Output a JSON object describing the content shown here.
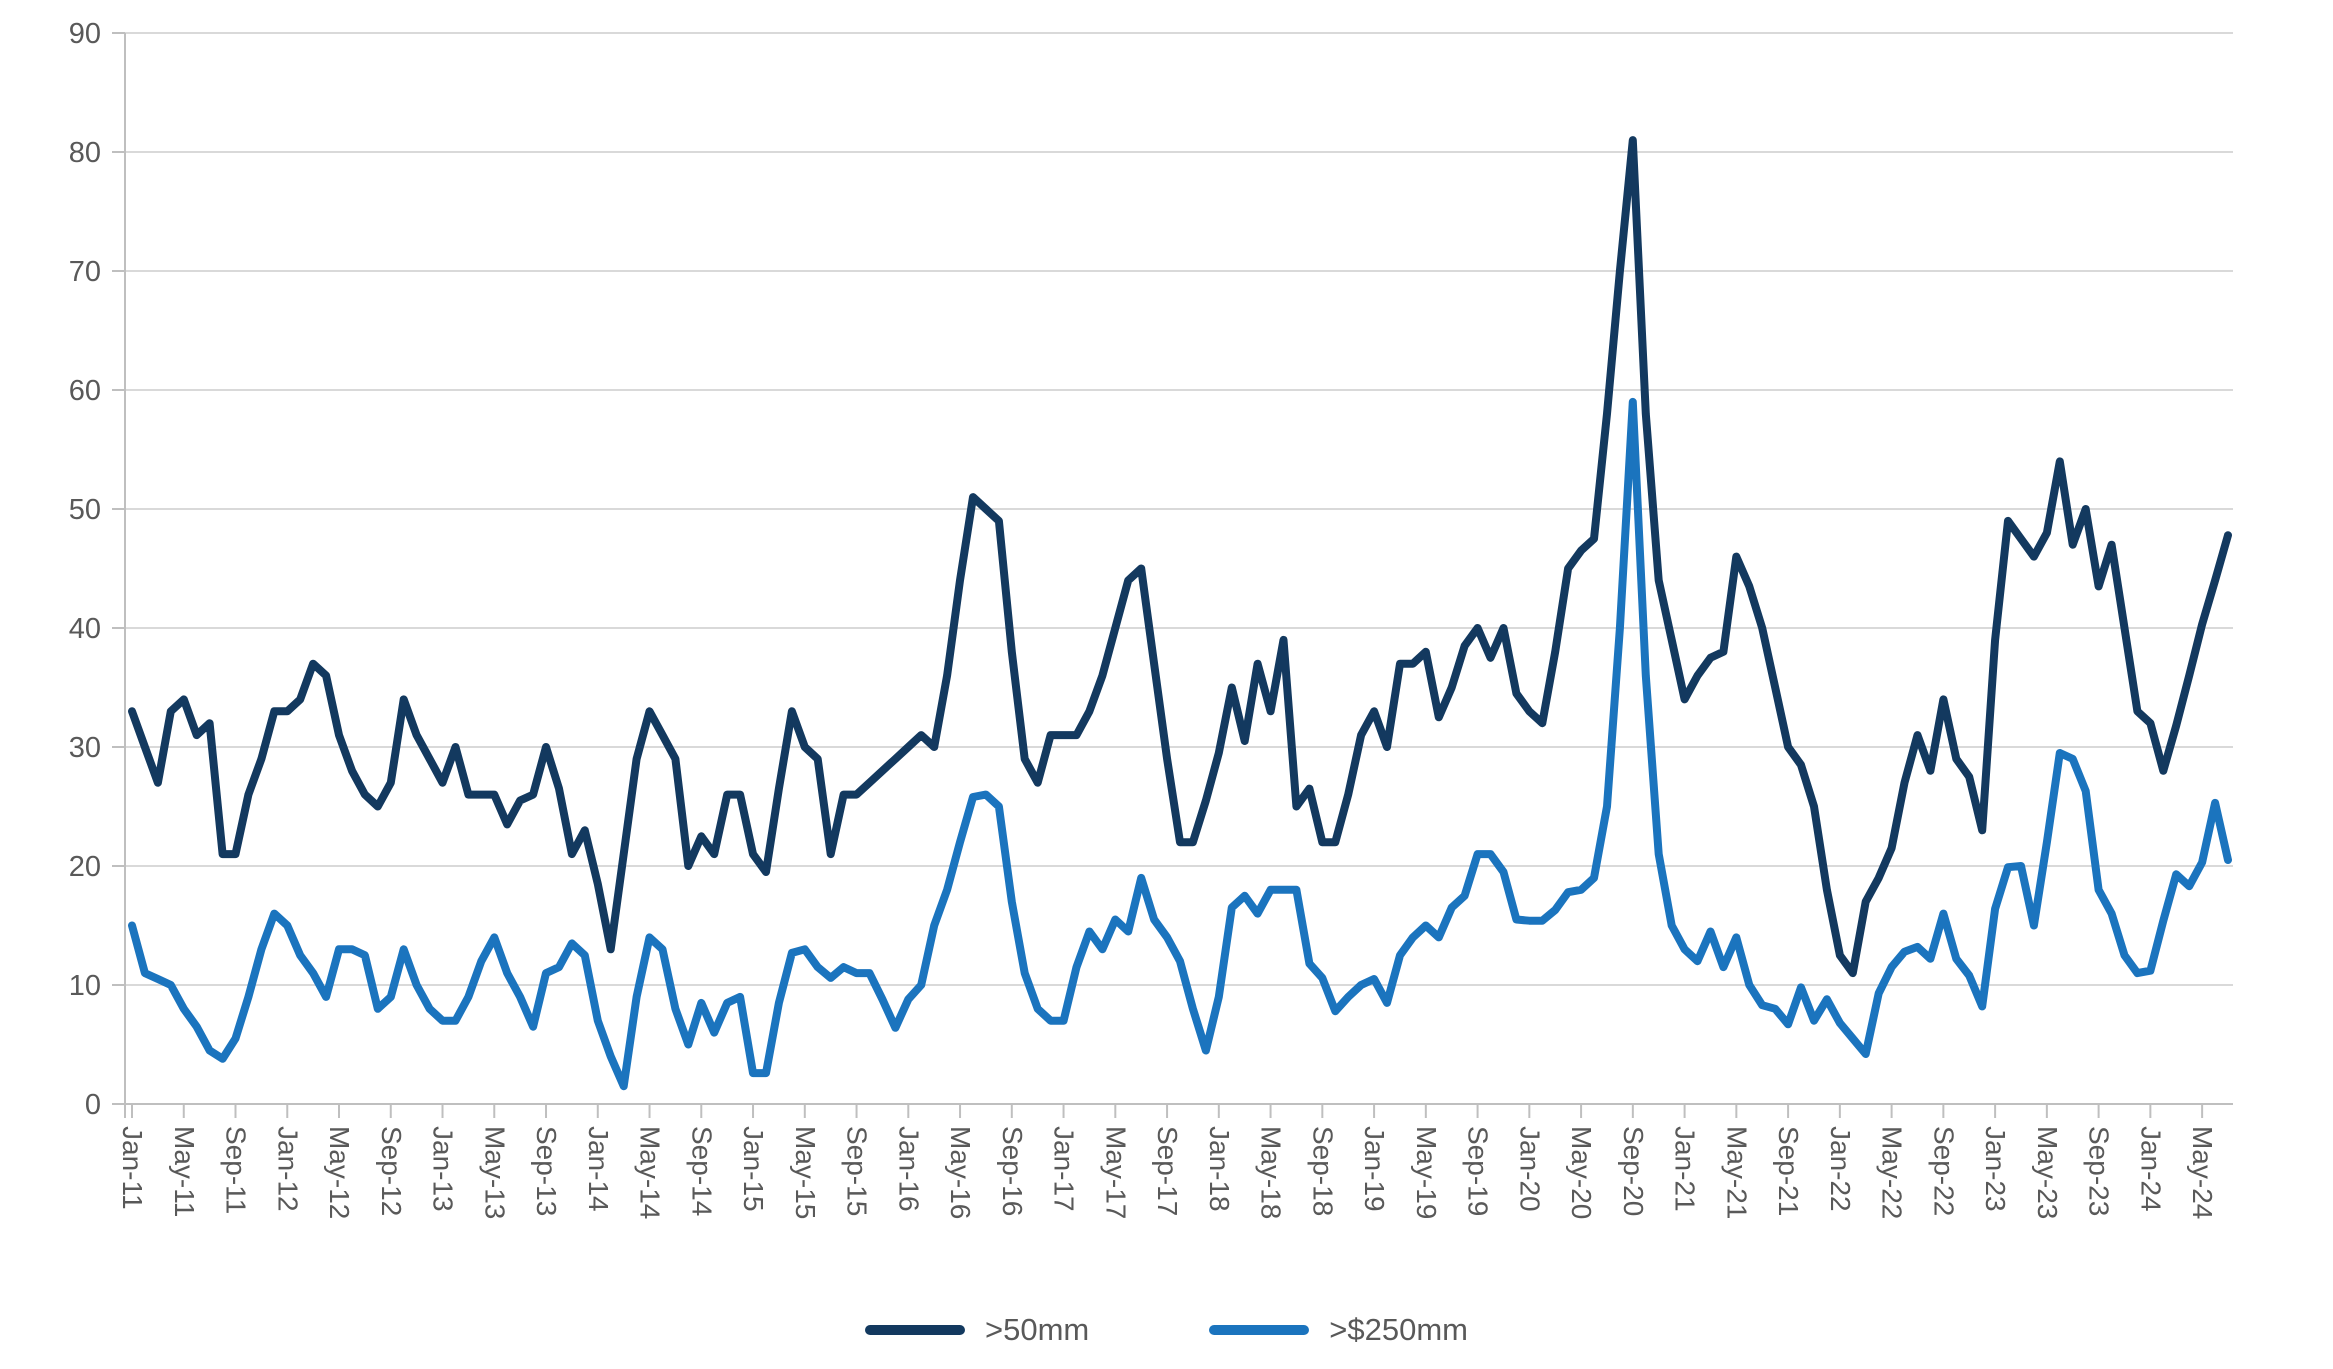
{
  "chart_data": {
    "type": "line",
    "title": "",
    "xlabel": "",
    "ylabel": "",
    "ylim": [
      0,
      90
    ],
    "y_ticks": [
      0,
      10,
      20,
      30,
      40,
      50,
      60,
      70,
      80,
      90
    ],
    "grid": "horizontal",
    "legend_position": "bottom-center",
    "x_start": "Jan-11",
    "x_end": "Jul-24",
    "x_frequency": "monthly",
    "x_tick_every_months": 4,
    "x_tick_labels": [
      "Jan-11",
      "May-11",
      "Sep-11",
      "Jan-12",
      "May-12",
      "Sep-12",
      "Jan-13",
      "May-13",
      "Sep-13",
      "Jan-14",
      "May-14",
      "Sep-14",
      "Jan-15",
      "May-15",
      "Sep-15",
      "Jan-16",
      "May-16",
      "Sep-16",
      "Jan-17",
      "May-17",
      "Sep-17",
      "Jan-18",
      "May-18",
      "Sep-18",
      "Jan-19",
      "May-19",
      "Sep-19",
      "Jan-20",
      "May-20",
      "Sep-20",
      "Jan-21",
      "May-21",
      "Sep-21",
      "Jan-22",
      "May-22",
      "Sep-22",
      "Jan-23",
      "May-23",
      "Sep-23",
      "Jan-24",
      "May-24"
    ],
    "series": [
      {
        "name": ">50mm",
        "color": "#13395F",
        "values": [
          33,
          30,
          27,
          33,
          34,
          31,
          32,
          21,
          21,
          26,
          29,
          33,
          33,
          34,
          37,
          36,
          31,
          28,
          26,
          25,
          27,
          34,
          31,
          29,
          27,
          30,
          26,
          26,
          26,
          23.5,
          25.5,
          26,
          30,
          26.5,
          21,
          23,
          18.5,
          13,
          21,
          29,
          33,
          31,
          29,
          20,
          22.5,
          21,
          26,
          26,
          21,
          19.5,
          26.5,
          33,
          30,
          29,
          21,
          26,
          26,
          27,
          28,
          29,
          30,
          31,
          30,
          36,
          44,
          51,
          50,
          49,
          38,
          29,
          27,
          31,
          31,
          31,
          33,
          36,
          40,
          44,
          45,
          37,
          29,
          22,
          22,
          25.5,
          29.5,
          35,
          30.5,
          37,
          33,
          39,
          25,
          26.5,
          22,
          22,
          26,
          31,
          33,
          30,
          37,
          37,
          38,
          32.5,
          35,
          38.5,
          40,
          37.5,
          40,
          34.5,
          33,
          32,
          38,
          45,
          46.5,
          47.5,
          58,
          70,
          81,
          58,
          44,
          39,
          34,
          36,
          37.5,
          38,
          46,
          43.5,
          40,
          35,
          30,
          28.5,
          25,
          18,
          12.5,
          11,
          17,
          19,
          21.5,
          27,
          31,
          28,
          34,
          29,
          27.5,
          23,
          39,
          49,
          47.5,
          46,
          48,
          54,
          47,
          50,
          43.5,
          47,
          40,
          33,
          32,
          28,
          31.8,
          36,
          40.3,
          44,
          47.8
        ]
      },
      {
        "name": ">$250mm",
        "color": "#1B74BE",
        "values": [
          15,
          11,
          10.5,
          10,
          8,
          6.5,
          4.5,
          3.8,
          5.5,
          9,
          13,
          16,
          15,
          12.5,
          11,
          9,
          13,
          13,
          12.5,
          8,
          9,
          13,
          10,
          8,
          7,
          7,
          9,
          12,
          14,
          11,
          9,
          6.5,
          11,
          11.5,
          13.5,
          12.5,
          7,
          4,
          1.5,
          9,
          14,
          13,
          8,
          5,
          8.5,
          6,
          8.5,
          9,
          2.6,
          2.6,
          8.5,
          12.7,
          13,
          11.5,
          10.6,
          11.5,
          11,
          11,
          8.8,
          6.4,
          8.8,
          10,
          15,
          18,
          22,
          25.8,
          26,
          25,
          17,
          11,
          8,
          7,
          7,
          11.5,
          14.5,
          13,
          15.5,
          14.5,
          19,
          15.5,
          14,
          12,
          8,
          4.5,
          9,
          16.5,
          17.5,
          16,
          18,
          18,
          18,
          11.8,
          10.6,
          7.8,
          9,
          10,
          10.5,
          8.5,
          12.5,
          14,
          15,
          14,
          16.5,
          17.5,
          21,
          21,
          19.5,
          15.5,
          15.4,
          15.4,
          16.3,
          17.8,
          18,
          19,
          25,
          40,
          59,
          36,
          21,
          15,
          13,
          12,
          14.5,
          11.5,
          14,
          10,
          8.3,
          8,
          6.7,
          9.8,
          7,
          8.8,
          6.8,
          5.5,
          4.2,
          9.3,
          11.5,
          12.8,
          13.2,
          12.2,
          16,
          12.2,
          10.8,
          8.2,
          16.4,
          19.9,
          20,
          15,
          22,
          29.5,
          29,
          26.3,
          18,
          16,
          12.5,
          11,
          11.2,
          15.4,
          19.3,
          18.3,
          20.3,
          25.3,
          20.5
        ]
      }
    ]
  },
  "legend": {
    "items": [
      {
        "label": ">50mm"
      },
      {
        "label": ">$250mm"
      }
    ]
  },
  "colors": {
    "background": "#FFFFFF",
    "gridline": "#D9D9D9",
    "axis_line": "#BFBFBF",
    "tick_label": "#595959",
    "legend_text": "#595959",
    "series_dark": "#13395F",
    "series_blue": "#1B74BE"
  },
  "axes": {
    "y_tick_label_font_px": 29,
    "x_tick_label_font_px": 28,
    "x_label_rotation_deg": 90
  }
}
